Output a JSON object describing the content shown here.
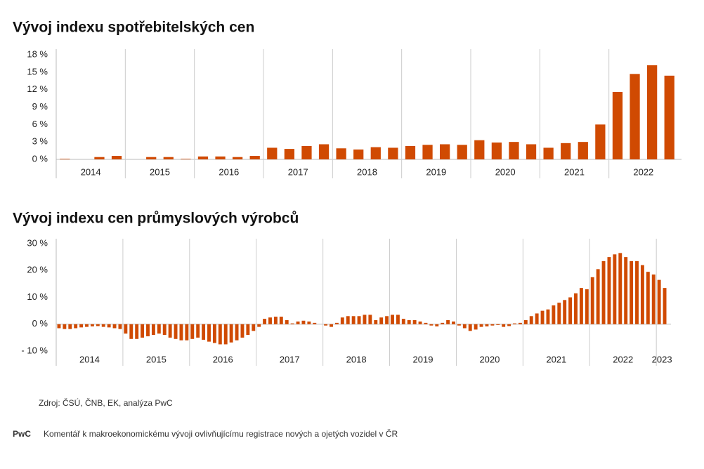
{
  "chart_data": [
    {
      "type": "bar",
      "title": "Vývoj indexu spotřebitelských cen",
      "color": "#d04a02",
      "categories": [
        "2014",
        null,
        null,
        null,
        "2015",
        null,
        null,
        null,
        "2016",
        null,
        null,
        null,
        "2017",
        null,
        null,
        null,
        "2018",
        null,
        null,
        null,
        "2019",
        null,
        null,
        null,
        "2020",
        null,
        null,
        null,
        "2021",
        null,
        null,
        null,
        "2022",
        null,
        null,
        null
      ],
      "values": [
        0.1,
        0.0,
        0.4,
        0.6,
        0.0,
        0.4,
        0.4,
        0.1,
        0.5,
        0.5,
        0.4,
        0.6,
        2.0,
        1.8,
        2.3,
        2.6,
        1.9,
        1.7,
        2.1,
        2.0,
        2.3,
        2.5,
        2.6,
        2.5,
        3.3,
        2.9,
        3.0,
        2.6,
        2.0,
        2.8,
        3.0,
        6.0,
        11.6,
        14.7,
        16.2,
        14.4
      ],
      "ylim": [
        0,
        18
      ],
      "yticks": [
        {
          "value": 0,
          "label": "0 %"
        },
        {
          "value": 3,
          "label": "3 %"
        },
        {
          "value": 6,
          "label": "6 %"
        },
        {
          "value": 9,
          "label": "9 %"
        },
        {
          "value": 12,
          "label": "12 %"
        },
        {
          "value": 15,
          "label": "15 %"
        },
        {
          "value": 18,
          "label": "18 %"
        }
      ]
    },
    {
      "type": "bar",
      "title": "Vývoj indexu cen průmyslových výrobců",
      "color": "#d04a02",
      "categories": [
        "2014",
        null,
        null,
        null,
        null,
        null,
        null,
        null,
        null,
        null,
        null,
        null,
        "2015",
        null,
        null,
        null,
        null,
        null,
        null,
        null,
        null,
        null,
        null,
        null,
        "2016",
        null,
        null,
        null,
        null,
        null,
        null,
        null,
        null,
        null,
        null,
        null,
        "2017",
        null,
        null,
        null,
        null,
        null,
        null,
        null,
        null,
        null,
        null,
        null,
        "2018",
        null,
        null,
        null,
        null,
        null,
        null,
        null,
        null,
        null,
        null,
        null,
        "2019",
        null,
        null,
        null,
        null,
        null,
        null,
        null,
        null,
        null,
        null,
        null,
        "2020",
        null,
        null,
        null,
        null,
        null,
        null,
        null,
        null,
        null,
        null,
        null,
        "2021",
        null,
        null,
        null,
        null,
        null,
        null,
        null,
        null,
        null,
        null,
        null,
        "2022",
        null,
        null,
        null,
        null,
        null,
        null,
        null,
        null,
        null,
        null,
        null,
        "2023",
        null
      ],
      "values": [
        -1.5,
        -1.8,
        -1.8,
        -1.5,
        -1.2,
        -1.0,
        -0.8,
        -0.7,
        -1.0,
        -1.2,
        -1.5,
        -1.8,
        -3.5,
        -5.5,
        -5.5,
        -5.0,
        -4.5,
        -4.0,
        -3.5,
        -4.0,
        -5.0,
        -5.5,
        -6.0,
        -6.0,
        -5.5,
        -5.0,
        -5.8,
        -6.5,
        -7.0,
        -7.5,
        -7.5,
        -6.8,
        -6.0,
        -5.0,
        -4.0,
        -2.5,
        -1.0,
        2.0,
        2.5,
        2.8,
        2.8,
        1.5,
        0.3,
        1.0,
        1.3,
        1.0,
        0.5,
        0.0,
        -0.5,
        -1.0,
        0.5,
        2.5,
        3.0,
        3.0,
        3.0,
        3.5,
        3.5,
        1.5,
        2.5,
        3.0,
        3.5,
        3.5,
        2.0,
        1.5,
        1.5,
        1.0,
        0.5,
        -0.5,
        -0.8,
        0.5,
        1.5,
        1.0,
        -0.5,
        -1.5,
        -2.5,
        -2.0,
        -1.0,
        -0.8,
        -0.5,
        -0.3,
        -1.0,
        -0.7,
        0.3,
        0.5,
        1.5,
        3.0,
        4.0,
        5.0,
        5.5,
        7.0,
        8.0,
        9.0,
        10.0,
        11.5,
        13.5,
        13.0,
        17.5,
        20.5,
        23.5,
        25.0,
        26.0,
        26.5,
        25.0,
        23.5,
        23.5,
        22.0,
        19.5,
        18.5,
        16.5,
        13.5
      ],
      "ylim": [
        -10,
        30
      ],
      "yticks": [
        {
          "value": -10,
          "label": "- 10 %"
        },
        {
          "value": 0,
          "label": "0 %"
        },
        {
          "value": 10,
          "label": "10 %"
        },
        {
          "value": 20,
          "label": "20 %"
        },
        {
          "value": 30,
          "label": "30 %"
        }
      ]
    }
  ],
  "source": "Zdroj: ČSÚ, ČNB, EK, analýza PwC",
  "footer": {
    "brand": "PwC",
    "text": "Komentář k makroekonomickému vývoji ovlivňujícímu registrace nových a ojetých vozidel v ČR"
  }
}
